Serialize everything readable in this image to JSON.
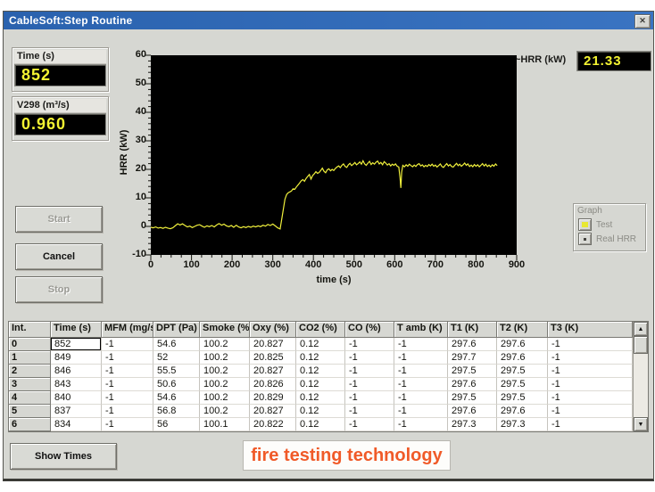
{
  "window": {
    "title": "CableSoft:Step Routine",
    "close_glyph": "✕"
  },
  "readouts": {
    "time_label": "Time (s)",
    "time_value": "852",
    "v298_label": "V298 (m³/s)",
    "v298_value": "0.960",
    "hrr_label": "~HRR (kW)",
    "hrr_value": "21.33"
  },
  "buttons": {
    "start": "Start",
    "cancel": "Cancel",
    "stop": "Stop",
    "show_times": "Show Times"
  },
  "graph_panel": {
    "title": "Graph",
    "options": [
      {
        "label": "Test",
        "indicator": "yellow-square"
      },
      {
        "label": "Real HRR",
        "indicator": "dot-square"
      }
    ]
  },
  "chart_data": {
    "type": "line",
    "title": "",
    "xlabel": "time (s)",
    "ylabel": "HRR (kW)",
    "xlim": [
      0,
      900
    ],
    "ylim": [
      -10,
      60
    ],
    "x_ticks": [
      0,
      100,
      200,
      300,
      400,
      500,
      600,
      700,
      800,
      900
    ],
    "y_ticks": [
      60,
      50,
      40,
      30,
      20,
      10,
      0,
      -10
    ],
    "grid": false,
    "legend": "none",
    "background": "#000000",
    "line_color": "#f0f03c",
    "series": [
      {
        "name": "HRR",
        "points": [
          [
            0,
            -0.3
          ],
          [
            6,
            -0.5
          ],
          [
            12,
            -0.2
          ],
          [
            18,
            -0.6
          ],
          [
            24,
            -0.4
          ],
          [
            30,
            -0.7
          ],
          [
            36,
            -0.3
          ],
          [
            42,
            -0.6
          ],
          [
            48,
            -0.8
          ],
          [
            54,
            -0.5
          ],
          [
            60,
            0.2
          ],
          [
            66,
            0.9
          ],
          [
            72,
            0.5
          ],
          [
            78,
            0.9
          ],
          [
            84,
            0.3
          ],
          [
            90,
            -0.2
          ],
          [
            96,
            0.1
          ],
          [
            102,
            -0.4
          ],
          [
            108,
            0
          ],
          [
            114,
            0.4
          ],
          [
            120,
            0.6
          ],
          [
            126,
            0.1
          ],
          [
            132,
            -0.3
          ],
          [
            138,
            0.2
          ],
          [
            144,
            -0.1
          ],
          [
            150,
            0.3
          ],
          [
            156,
            -0.2
          ],
          [
            162,
            0.5
          ],
          [
            168,
            1
          ],
          [
            174,
            0.4
          ],
          [
            180,
            0.8
          ],
          [
            186,
            0.2
          ],
          [
            192,
            -0.1
          ],
          [
            198,
            0.3
          ],
          [
            204,
            -0.3
          ],
          [
            210,
            0.4
          ],
          [
            216,
            -0.2
          ],
          [
            222,
            -0.5
          ],
          [
            228,
            -0.1
          ],
          [
            234,
            -0.4
          ],
          [
            240,
            0
          ],
          [
            246,
            -0.3
          ],
          [
            252,
            0.1
          ],
          [
            258,
            -0.2
          ],
          [
            264,
            0.2
          ],
          [
            270,
            -0.1
          ],
          [
            276,
            0.4
          ],
          [
            282,
            0.1
          ],
          [
            288,
            0.7
          ],
          [
            294,
            0.3
          ],
          [
            300,
            0.8
          ],
          [
            306,
            0.2
          ],
          [
            312,
            -0.5
          ],
          [
            318,
            -0.9
          ],
          [
            322,
            2.5
          ],
          [
            326,
            6
          ],
          [
            330,
            9.5
          ],
          [
            334,
            11.2
          ],
          [
            338,
            11.8
          ],
          [
            342,
            12.1
          ],
          [
            346,
            12.4
          ],
          [
            350,
            13.2
          ],
          [
            354,
            13
          ],
          [
            358,
            13.8
          ],
          [
            362,
            14.5
          ],
          [
            366,
            15.2
          ],
          [
            370,
            16
          ],
          [
            374,
            16.4
          ],
          [
            378,
            15.8
          ],
          [
            382,
            16.8
          ],
          [
            386,
            17.5
          ],
          [
            390,
            18.2
          ],
          [
            394,
            16.6
          ],
          [
            398,
            17.8
          ],
          [
            402,
            18.4
          ],
          [
            406,
            19.2
          ],
          [
            410,
            18.6
          ],
          [
            414,
            18.9
          ],
          [
            418,
            19.6
          ],
          [
            422,
            20.4
          ],
          [
            426,
            19.3
          ],
          [
            430,
            18.8
          ],
          [
            434,
            19.8
          ],
          [
            438,
            20.2
          ],
          [
            442,
            19.5
          ],
          [
            446,
            20
          ],
          [
            450,
            19.6
          ],
          [
            454,
            20.3
          ],
          [
            458,
            20.8
          ],
          [
            462,
            21.2
          ],
          [
            466,
            20.6
          ],
          [
            470,
            21.4
          ],
          [
            474,
            21.9
          ],
          [
            478,
            21
          ],
          [
            482,
            20.7
          ],
          [
            486,
            21.6
          ],
          [
            490,
            22.1
          ],
          [
            494,
            21.3
          ],
          [
            498,
            21.8
          ],
          [
            502,
            22.4
          ],
          [
            506,
            21.6
          ],
          [
            510,
            22
          ],
          [
            514,
            22.6
          ],
          [
            518,
            21.8
          ],
          [
            522,
            23
          ],
          [
            526,
            21.9
          ],
          [
            530,
            21.4
          ],
          [
            534,
            22.2
          ],
          [
            538,
            22.8
          ],
          [
            542,
            21.7
          ],
          [
            546,
            22.3
          ],
          [
            550,
            21.8
          ],
          [
            554,
            22.5
          ],
          [
            558,
            22.9
          ],
          [
            562,
            21.9
          ],
          [
            566,
            22.4
          ],
          [
            570,
            21.6
          ],
          [
            574,
            22.7
          ],
          [
            578,
            22.2
          ],
          [
            582,
            21.5
          ],
          [
            586,
            22
          ],
          [
            590,
            21.2
          ],
          [
            594,
            21.8
          ],
          [
            598,
            21.4
          ],
          [
            602,
            21.9
          ],
          [
            606,
            21.1
          ],
          [
            610,
            20.8
          ],
          [
            613,
            17
          ],
          [
            615,
            13.5
          ],
          [
            617,
            19
          ],
          [
            620,
            21.4
          ],
          [
            624,
            20.9
          ],
          [
            628,
            21.6
          ],
          [
            632,
            21.1
          ],
          [
            636,
            21.8
          ],
          [
            640,
            21.3
          ],
          [
            644,
            20.9
          ],
          [
            648,
            21.5
          ],
          [
            652,
            21
          ],
          [
            656,
            21.7
          ],
          [
            660,
            22
          ],
          [
            664,
            21.2
          ],
          [
            668,
            21.6
          ],
          [
            672,
            20.9
          ],
          [
            676,
            21.4
          ],
          [
            680,
            21
          ],
          [
            684,
            21.7
          ],
          [
            688,
            21.2
          ],
          [
            692,
            21.8
          ],
          [
            696,
            21.1
          ],
          [
            700,
            21.5
          ],
          [
            704,
            20.8
          ],
          [
            708,
            21.3
          ],
          [
            712,
            21.9
          ],
          [
            716,
            21
          ],
          [
            720,
            20.7
          ],
          [
            724,
            21.4
          ],
          [
            728,
            22
          ],
          [
            732,
            21.2
          ],
          [
            736,
            21.7
          ],
          [
            740,
            21
          ],
          [
            744,
            20.8
          ],
          [
            748,
            21.5
          ],
          [
            752,
            22.1
          ],
          [
            756,
            21.3
          ],
          [
            760,
            21.8
          ],
          [
            764,
            21.1
          ],
          [
            768,
            21.6
          ],
          [
            772,
            22.2
          ],
          [
            776,
            21.4
          ],
          [
            780,
            21.9
          ],
          [
            784,
            21
          ],
          [
            788,
            21.5
          ],
          [
            792,
            20.9
          ],
          [
            796,
            21.7
          ],
          [
            800,
            21.1
          ],
          [
            804,
            21.6
          ],
          [
            808,
            20.9
          ],
          [
            812,
            21.4
          ],
          [
            816,
            22
          ],
          [
            820,
            21.2
          ],
          [
            824,
            21.8
          ],
          [
            828,
            21
          ],
          [
            832,
            21.5
          ],
          [
            836,
            20.9
          ],
          [
            840,
            21.6
          ],
          [
            844,
            21.1
          ],
          [
            848,
            21.9
          ],
          [
            852,
            21.3
          ]
        ]
      }
    ]
  },
  "table": {
    "headers": [
      "Int.",
      "Time (s)",
      "MFM (mg/s)",
      "DPT (Pa)",
      "Smoke (%)",
      "Oxy (%)",
      "CO2 (%)",
      "CO (%)",
      "T amb (K)",
      "T1 (K)",
      "T2 (K)",
      "T3 (K)"
    ],
    "rows": [
      [
        "0",
        "852",
        "-1",
        "54.6",
        "100.2",
        "20.827",
        "0.12",
        "-1",
        "-1",
        "297.6",
        "297.6",
        "-1"
      ],
      [
        "1",
        "849",
        "-1",
        "52",
        "100.2",
        "20.825",
        "0.12",
        "-1",
        "-1",
        "297.7",
        "297.6",
        "-1"
      ],
      [
        "2",
        "846",
        "-1",
        "55.5",
        "100.2",
        "20.827",
        "0.12",
        "-1",
        "-1",
        "297.5",
        "297.5",
        "-1"
      ],
      [
        "3",
        "843",
        "-1",
        "50.6",
        "100.2",
        "20.826",
        "0.12",
        "-1",
        "-1",
        "297.6",
        "297.5",
        "-1"
      ],
      [
        "4",
        "840",
        "-1",
        "54.6",
        "100.2",
        "20.829",
        "0.12",
        "-1",
        "-1",
        "297.5",
        "297.5",
        "-1"
      ],
      [
        "5",
        "837",
        "-1",
        "56.8",
        "100.2",
        "20.827",
        "0.12",
        "-1",
        "-1",
        "297.6",
        "297.6",
        "-1"
      ],
      [
        "6",
        "834",
        "-1",
        "56",
        "100.1",
        "20.822",
        "0.12",
        "-1",
        "-1",
        "297.3",
        "297.3",
        "-1"
      ]
    ],
    "selected_cell": {
      "row": 0,
      "col": 1
    },
    "scrollbar": {
      "up_glyph": "▲",
      "down_glyph": "▼"
    }
  },
  "logo": {
    "text": "fire testing technology"
  },
  "colors": {
    "titlebar": "#2e6ab5",
    "dialog_bg": "#d6d7d2",
    "display_text": "#f4f432",
    "chart_line": "#f0f03c",
    "chart_bg": "#000000",
    "logo_orange": "#f05a28",
    "disabled_text": "#9a9a94"
  }
}
